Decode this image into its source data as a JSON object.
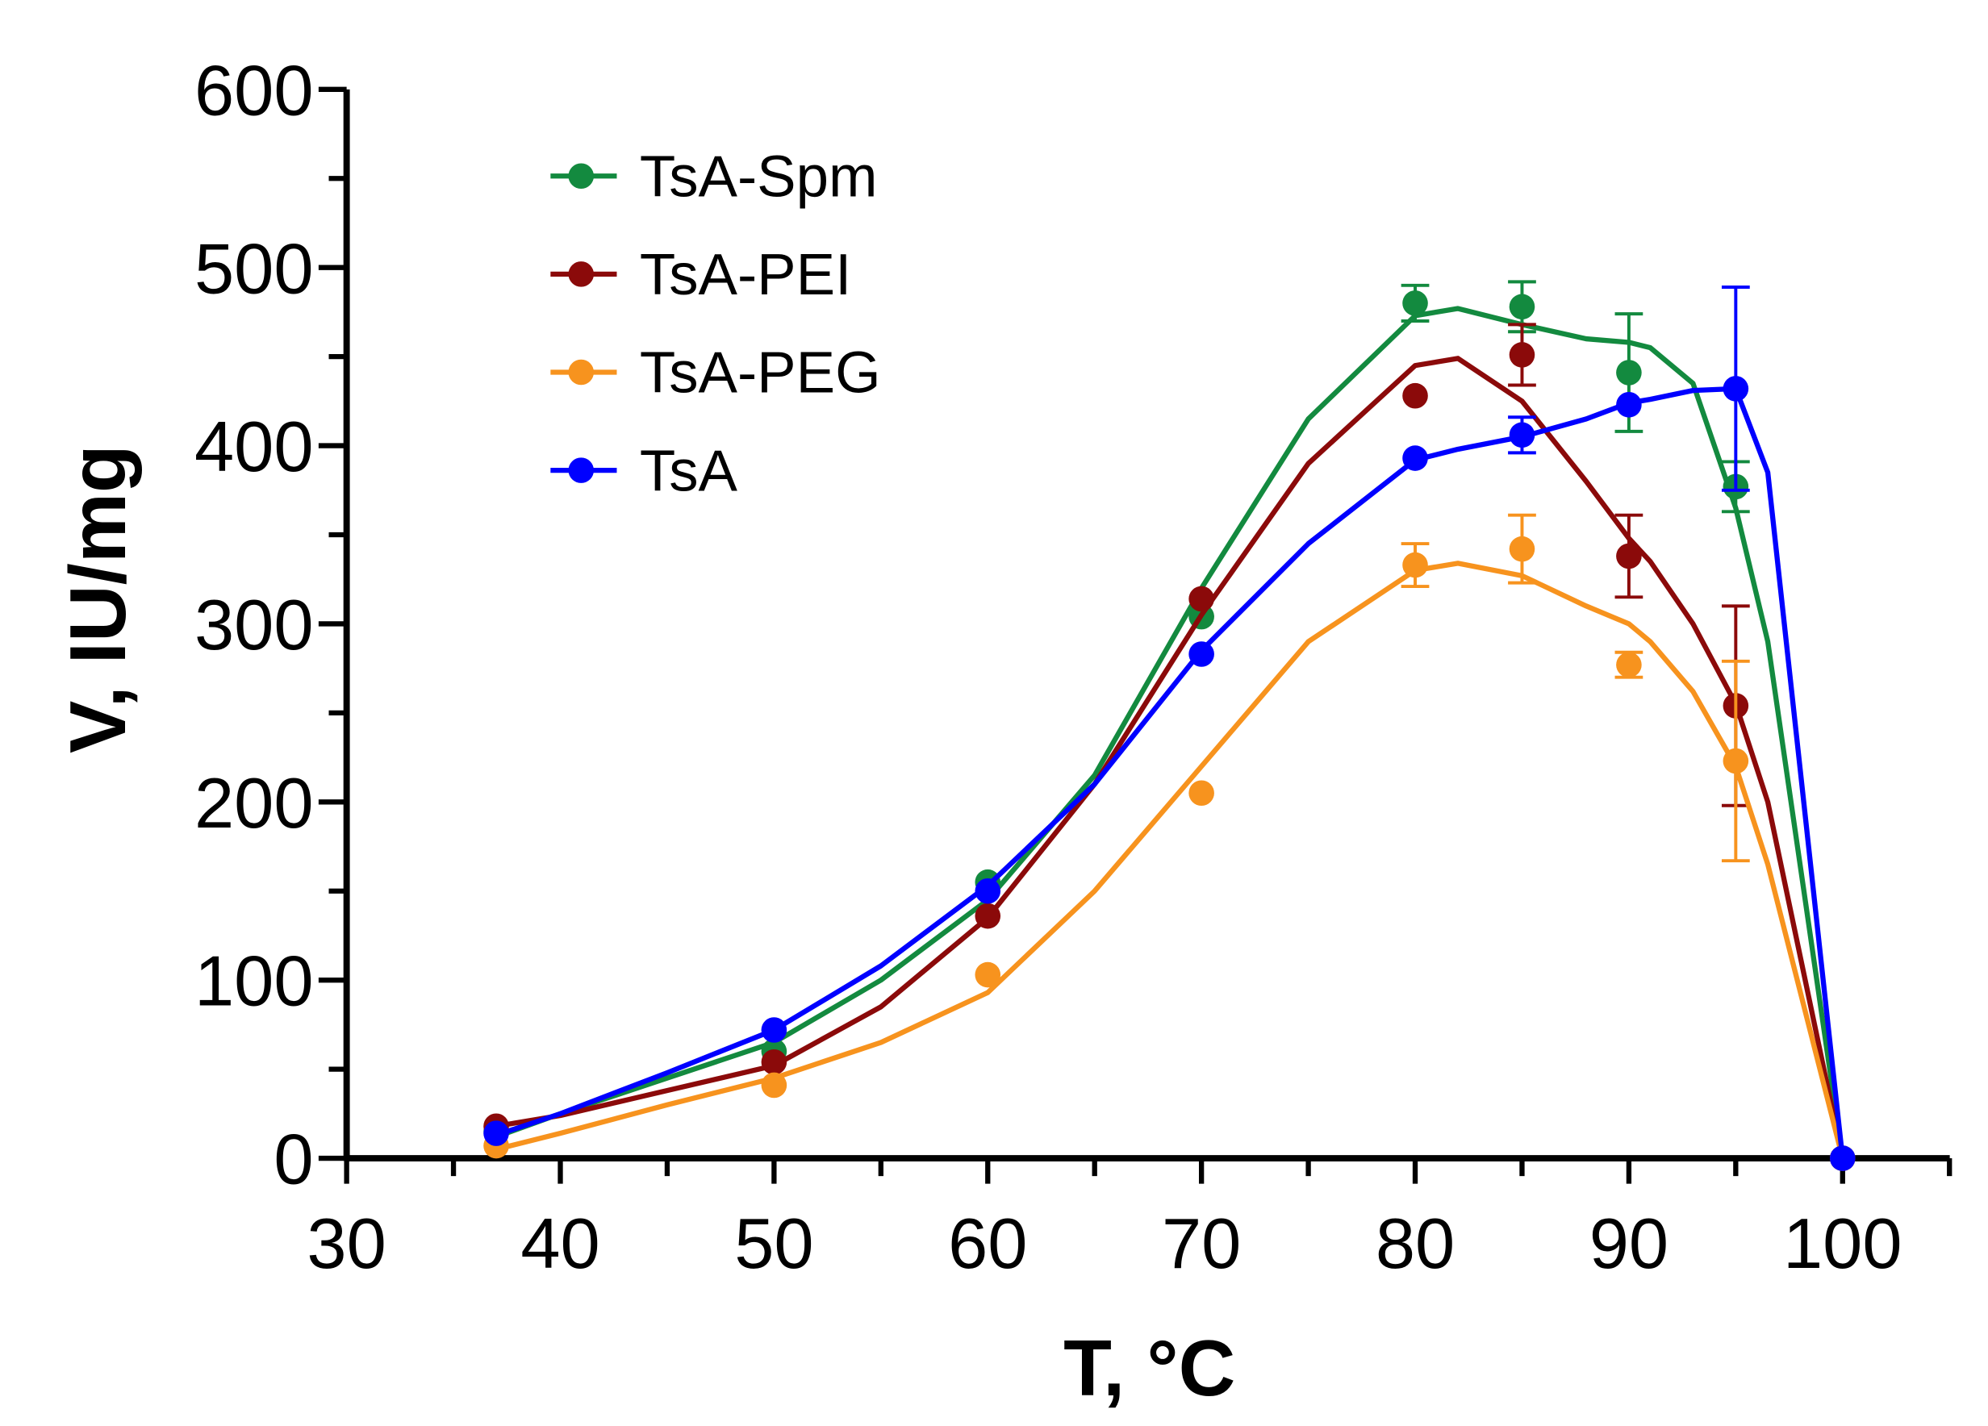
{
  "chart_data": {
    "type": "line",
    "title": "",
    "xlabel": "T, °C",
    "ylabel": "V, IU/mg",
    "xlim": [
      30,
      105
    ],
    "ylim": [
      0,
      600
    ],
    "x_ticks": [
      30,
      40,
      50,
      60,
      70,
      80,
      90,
      100
    ],
    "y_ticks": [
      0,
      100,
      200,
      300,
      400,
      500,
      600
    ],
    "grid": false,
    "legend_position": "top-left",
    "x": [
      37,
      50,
      60,
      70,
      80,
      85,
      90,
      95,
      100
    ],
    "fit_x": [
      37,
      40,
      45,
      50,
      55,
      60,
      65,
      70,
      75,
      80,
      82,
      85,
      88,
      90,
      91,
      93,
      95,
      96.5,
      100
    ],
    "series": [
      {
        "name": "TsA-Spm",
        "color": "#138a3f",
        "values": [
          15,
          60,
          155,
          304,
          480,
          478,
          441,
          377,
          0
        ],
        "errors": [
          0,
          0,
          0,
          0,
          10,
          14,
          33,
          14,
          0
        ],
        "fit": [
          12,
          25,
          45,
          65,
          100,
          145,
          215,
          320,
          415,
          473,
          477,
          468,
          460,
          458,
          455,
          435,
          365,
          290,
          0
        ]
      },
      {
        "name": "TsA-PEI",
        "color": "#8b0a0a",
        "values": [
          18,
          54,
          136,
          314,
          428,
          451,
          338,
          254,
          0
        ],
        "errors": [
          0,
          0,
          0,
          0,
          0,
          17,
          23,
          56,
          0
        ],
        "fit": [
          18,
          24,
          38,
          52,
          85,
          135,
          210,
          305,
          390,
          445,
          449,
          425,
          380,
          348,
          335,
          300,
          255,
          200,
          0
        ]
      },
      {
        "name": "TsA-PEG",
        "color": "#f7931e",
        "values": [
          7,
          41,
          103,
          205,
          333,
          342,
          277,
          223,
          0
        ],
        "errors": [
          0,
          0,
          0,
          0,
          12,
          19,
          7,
          56,
          0
        ],
        "fit": [
          5,
          14,
          30,
          45,
          65,
          93,
          150,
          220,
          290,
          330,
          334,
          327,
          310,
          300,
          290,
          262,
          220,
          165,
          0
        ]
      },
      {
        "name": "TsA",
        "color": "#0000ff",
        "values": [
          14,
          72,
          150,
          283,
          393,
          406,
          423,
          432,
          0
        ],
        "errors": [
          0,
          0,
          0,
          0,
          0,
          10,
          0,
          57,
          0
        ],
        "fit": [
          13,
          25,
          48,
          72,
          108,
          153,
          210,
          285,
          345,
          392,
          398,
          405,
          415,
          424,
          426,
          431,
          432,
          385,
          0
        ]
      }
    ]
  }
}
